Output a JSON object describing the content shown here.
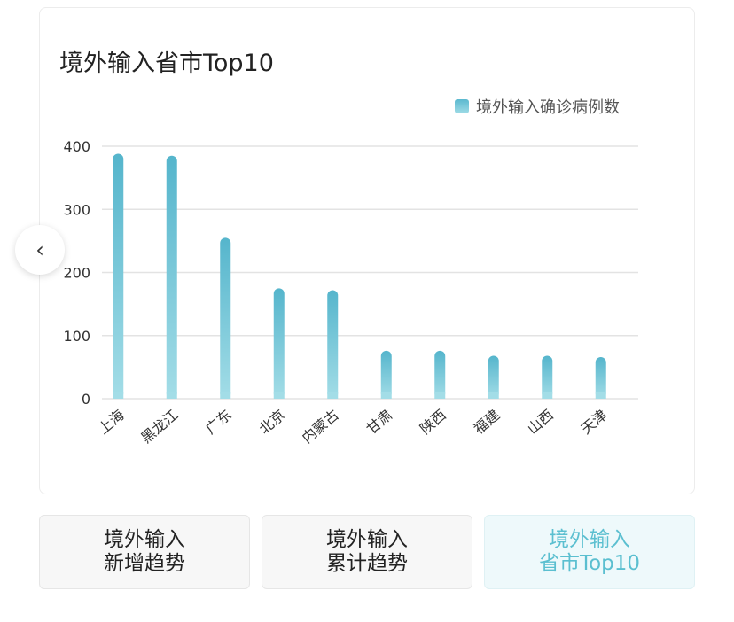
{
  "chart_data": {
    "type": "bar",
    "title": "境外输入省市Top10",
    "categories": [
      "上海",
      "黑龙江",
      "广东",
      "北京",
      "内蒙古",
      "甘肃",
      "陕西",
      "福建",
      "山西",
      "天津"
    ],
    "series": [
      {
        "name": "境外输入确诊病例数",
        "values": [
          388,
          385,
          255,
          175,
          172,
          76,
          76,
          68,
          68,
          66
        ]
      }
    ],
    "ylim": [
      0,
      400
    ],
    "yticks": [
      0,
      100,
      200,
      300,
      400
    ],
    "grid": true,
    "legend": "top-right",
    "color": "#5bb9cf"
  },
  "nav": {
    "prev_icon": "chevron-left-icon",
    "prev": "‹"
  },
  "tabs": [
    {
      "line1": "境外输入",
      "line2": "新增趋势"
    },
    {
      "line1": "境外输入",
      "line2": "累计趋势"
    },
    {
      "line1": "境外输入",
      "line2": "省市Top10"
    }
  ]
}
